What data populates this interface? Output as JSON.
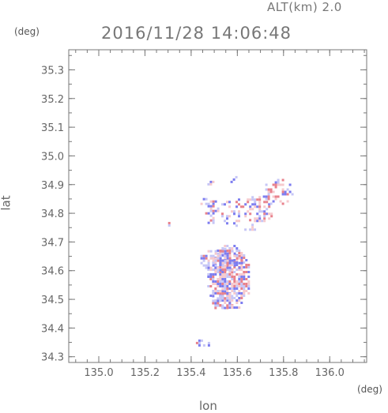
{
  "header": {
    "altitude": "ALT(km) 2.0",
    "timestamp": "2016/11/28 14:06:48"
  },
  "chart_data": {
    "type": "heatmap",
    "title": "2016/11/28 14:06:48",
    "subtitle": "ALT(km) 2.0",
    "xlabel": "lon",
    "ylabel": "lat",
    "x_unit": "(deg)",
    "y_unit": "(deg)",
    "xlim": [
      134.87,
      136.16
    ],
    "ylim": [
      34.28,
      35.37
    ],
    "x_ticks": [
      {
        "value": 135.0,
        "label": "135.0"
      },
      {
        "value": 135.2,
        "label": "135.2"
      },
      {
        "value": 135.4,
        "label": "135.4"
      },
      {
        "value": 135.6,
        "label": "135.6"
      },
      {
        "value": 135.8,
        "label": "135.8"
      },
      {
        "value": 136.0,
        "label": "136.0"
      }
    ],
    "y_ticks": [
      {
        "value": 34.3,
        "label": "34.3"
      },
      {
        "value": 34.4,
        "label": "34.4"
      },
      {
        "value": 34.5,
        "label": "34.5"
      },
      {
        "value": 34.6,
        "label": "34.6"
      },
      {
        "value": 34.7,
        "label": "34.7"
      },
      {
        "value": 34.8,
        "label": "34.8"
      },
      {
        "value": 34.9,
        "label": "34.9"
      },
      {
        "value": 35.0,
        "label": "35.0"
      },
      {
        "value": 35.1,
        "label": "35.1"
      },
      {
        "value": 35.2,
        "label": "35.2"
      },
      {
        "value": 35.3,
        "label": "35.3"
      }
    ],
    "minor_tick_step": 0.05,
    "grid": false,
    "colors": {
      "positive": "#e8828c",
      "negative": "#7d7df0",
      "light_positive": "#f6c9cd",
      "light_negative": "#c6c6f6",
      "axis": "#777777"
    },
    "echo_regions": [
      {
        "lon": [
          135.47,
          135.65
        ],
        "lat": [
          34.47,
          34.69
        ],
        "density": 0.75,
        "sign_bias": 0.0
      },
      {
        "lon": [
          135.44,
          135.62
        ],
        "lat": [
          34.6,
          34.68
        ],
        "density": 0.65,
        "sign_bias": -0.2
      },
      {
        "lon": [
          135.48,
          135.58
        ],
        "lat": [
          34.47,
          34.54
        ],
        "density": 0.55,
        "sign_bias": -0.3
      },
      {
        "lon": [
          135.52,
          135.62
        ],
        "lat": [
          34.75,
          34.86
        ],
        "density": 0.4,
        "sign_bias": -0.3
      },
      {
        "lon": [
          135.62,
          135.75
        ],
        "lat": [
          34.77,
          34.86
        ],
        "density": 0.5,
        "sign_bias": 0.1
      },
      {
        "lon": [
          135.7,
          135.84
        ],
        "lat": [
          34.83,
          34.92
        ],
        "density": 0.4,
        "sign_bias": 0.3
      },
      {
        "lon": [
          135.44,
          135.52
        ],
        "lat": [
          34.77,
          34.87
        ],
        "density": 0.3,
        "sign_bias": -0.4
      },
      {
        "lon": [
          135.46,
          135.5
        ],
        "lat": [
          34.9,
          34.93
        ],
        "density": 0.3,
        "sign_bias": -0.6
      },
      {
        "lon": [
          135.57,
          135.61
        ],
        "lat": [
          34.9,
          34.93
        ],
        "density": 0.4,
        "sign_bias": -0.6
      },
      {
        "lon": [
          135.63,
          135.69
        ],
        "lat": [
          34.72,
          34.78
        ],
        "density": 0.35,
        "sign_bias": -0.4
      },
      {
        "lon": [
          135.29,
          135.31
        ],
        "lat": [
          34.76,
          34.77
        ],
        "density": 0.9,
        "sign_bias": 0.4
      },
      {
        "lon": [
          135.4,
          135.5
        ],
        "lat": [
          34.34,
          34.36
        ],
        "density": 0.35,
        "sign_bias": -0.7
      }
    ]
  }
}
